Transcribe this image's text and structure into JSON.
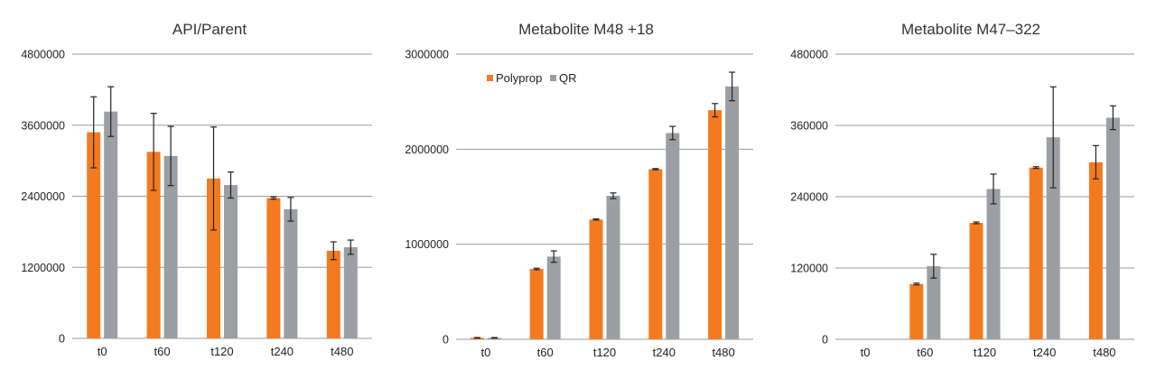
{
  "colors": {
    "polyprop": "#F47A20",
    "qr": "#9B9FA3",
    "grid": "#9A9A9A",
    "error": "#222222"
  },
  "legend": {
    "items": [
      "Polyprop",
      "QR"
    ]
  },
  "chart_data": [
    {
      "type": "bar",
      "title": "API/Parent",
      "categories": [
        "t0",
        "t60",
        "t120",
        "t240",
        "t480"
      ],
      "ylim": [
        0,
        4800000
      ],
      "yticks": [
        "0",
        "1200000",
        "2400000",
        "3600000",
        "4800000"
      ],
      "grid": true,
      "legend": "none",
      "series": [
        {
          "name": "Polyprop",
          "values": [
            3480000,
            3150000,
            2700000,
            2370000,
            1480000
          ],
          "errors": [
            600000,
            650000,
            870000,
            20000,
            150000
          ]
        },
        {
          "name": "QR",
          "values": [
            3830000,
            3080000,
            2590000,
            2180000,
            1540000
          ],
          "errors": [
            420000,
            500000,
            220000,
            200000,
            120000
          ]
        }
      ]
    },
    {
      "type": "bar",
      "title": "Metabolite M48 +18",
      "categories": [
        "t0",
        "t60",
        "t120",
        "t240",
        "t480"
      ],
      "ylim": [
        0,
        3000000
      ],
      "yticks": [
        "0",
        "1000000",
        "2000000",
        "3000000"
      ],
      "grid": true,
      "legend": "top-left",
      "series": [
        {
          "name": "Polyprop",
          "values": [
            15000,
            740000,
            1260000,
            1790000,
            2410000
          ],
          "errors": [
            3000,
            8000,
            6000,
            6000,
            70000
          ]
        },
        {
          "name": "QR",
          "values": [
            15000,
            870000,
            1510000,
            2170000,
            2660000
          ],
          "errors": [
            3000,
            60000,
            30000,
            70000,
            150000
          ]
        }
      ]
    },
    {
      "type": "bar",
      "title": "Metabolite M47–322",
      "categories": [
        "t0",
        "t60",
        "t120",
        "t240",
        "t480"
      ],
      "ylim": [
        0,
        480000
      ],
      "yticks": [
        "0",
        "120000",
        "240000",
        "360000",
        "480000"
      ],
      "grid": true,
      "legend": "none",
      "series": [
        {
          "name": "Polyprop",
          "values": [
            0,
            93000,
            196000,
            289000,
            298000
          ],
          "errors": [
            0,
            1500,
            1500,
            1500,
            28000
          ]
        },
        {
          "name": "QR",
          "values": [
            0,
            123000,
            253000,
            340000,
            373000
          ],
          "errors": [
            0,
            20000,
            25000,
            85000,
            20000
          ]
        }
      ]
    }
  ]
}
